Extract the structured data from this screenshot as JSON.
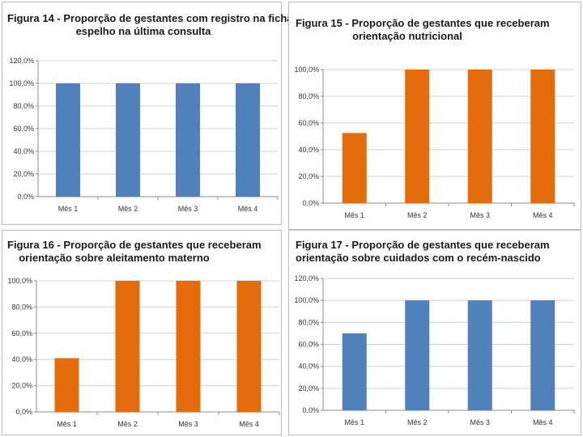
{
  "chart_data": [
    {
      "type": "bar",
      "title_lines": [
        "Figura 14 - Proporção de gestantes com registro na ficha-",
        "espelho na última consulta"
      ],
      "categories": [
        "Mês 1",
        "Mês 2",
        "Mês 3",
        "Mês 4"
      ],
      "values": [
        100,
        100,
        100,
        100
      ],
      "color": "#4f81bd",
      "ylim": [
        0,
        120
      ],
      "yticks": [
        "0,0%",
        "20,0%",
        "40,0%",
        "60,0%",
        "80,0%",
        "100,0%",
        "120,0%"
      ],
      "xlabel": "",
      "ylabel": "",
      "legend": "none"
    },
    {
      "type": "bar",
      "title_lines": [
        "Figura 15 - Proporção de gestantes que receberam",
        "orientação nutricional"
      ],
      "categories": [
        "Mês 1",
        "Mês 2",
        "Mês 3",
        "Mês 4"
      ],
      "values": [
        52.5,
        100,
        100,
        100
      ],
      "color": "#e46c0a",
      "ylim": [
        0,
        100
      ],
      "yticks": [
        "0,0%",
        "20,0%",
        "40,0%",
        "60,0%",
        "80,0%",
        "100,0%"
      ],
      "xlabel": "",
      "ylabel": "",
      "legend": "none"
    },
    {
      "type": "bar",
      "title_lines": [
        "Figura 16 - Proporção de gestantes que receberam",
        "orientação sobre aleitamento materno"
      ],
      "categories": [
        "Mês 1",
        "Mês 2",
        "Mês 3",
        "Mês 4"
      ],
      "values": [
        41,
        100,
        100,
        100
      ],
      "color": "#e46c0a",
      "ylim": [
        0,
        100
      ],
      "yticks": [
        "0,0%",
        "20,0%",
        "40,0%",
        "60,0%",
        "80,0%",
        "100,0%"
      ],
      "xlabel": "",
      "ylabel": "",
      "legend": "none"
    },
    {
      "type": "bar",
      "title_lines": [
        "Figura 17 - Proporção de gestantes que receberam",
        "orientação sobre cuidados com o recém-nascido"
      ],
      "categories": [
        "Mês 1",
        "Mês 2",
        "Mês 3",
        "Mês 4"
      ],
      "values": [
        70,
        100,
        100,
        100
      ],
      "color": "#4f81bd",
      "ylim": [
        0,
        120
      ],
      "yticks": [
        "0,0%",
        "20,0%",
        "40,0%",
        "60,0%",
        "80,0%",
        "100,0%",
        "120,0%"
      ],
      "xlabel": "",
      "ylabel": "",
      "legend": "none"
    }
  ]
}
